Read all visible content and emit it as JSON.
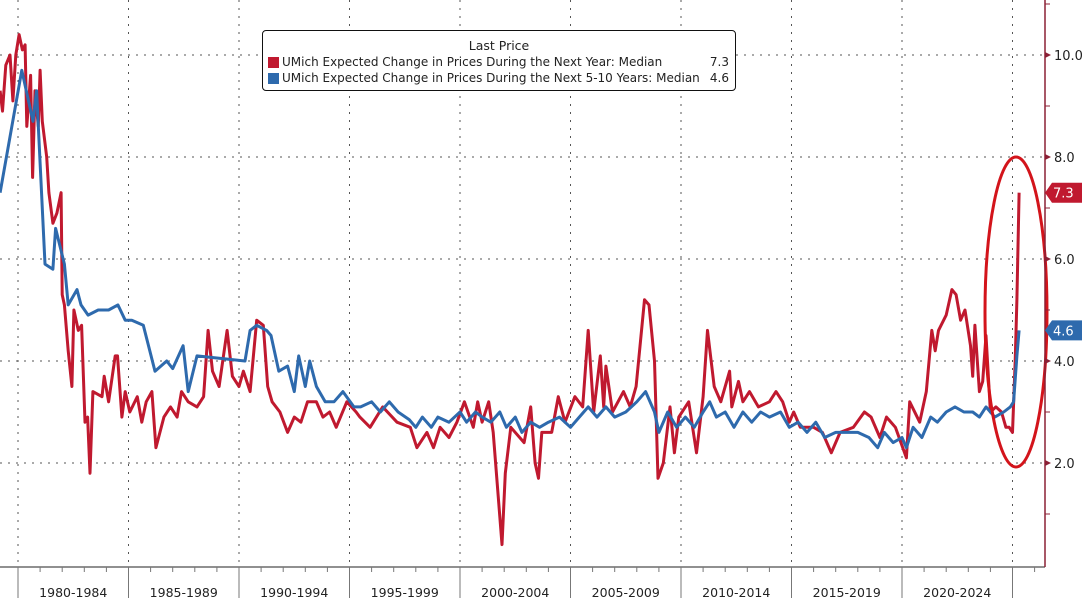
{
  "chart_data": {
    "type": "line",
    "title": "",
    "xlabel": "",
    "ylabel": "",
    "xlim": [
      1979.2,
      2026.6
    ],
    "ylim": [
      0,
      11.08
    ],
    "y_ticks": [
      2.0,
      4.0,
      6.0,
      8.0,
      10.0
    ],
    "y_tick_labels": [
      "2.0",
      "4.0",
      "6.0",
      "8.0",
      "10.0"
    ],
    "x_categories": [
      "1980-1984",
      "1985-1989",
      "1990-1994",
      "1995-1999",
      "2000-2004",
      "2005-2009",
      "2010-2014",
      "2015-2019",
      "2020-2024"
    ],
    "x_category_starts": [
      1980,
      1985,
      1990,
      1995,
      2000,
      2005,
      2010,
      2015,
      2020
    ],
    "grid": true,
    "legend_position": "top-center",
    "legend_header": "Last Price",
    "annotation": "red ellipse around latest 2025 spike",
    "series": [
      {
        "name": "UMich Expected Change in Prices During the Next Year: Median",
        "last": "7.3",
        "color": "#c0192f",
        "points": [
          [
            1979.19,
            9.3
          ],
          [
            1979.3,
            8.9
          ],
          [
            1979.45,
            9.8
          ],
          [
            1979.64,
            10.0
          ],
          [
            1979.77,
            9.1
          ],
          [
            1979.9,
            10.0
          ],
          [
            1980.05,
            10.4
          ],
          [
            1980.2,
            10.1
          ],
          [
            1980.32,
            10.2
          ],
          [
            1980.4,
            8.6
          ],
          [
            1980.57,
            9.6
          ],
          [
            1980.66,
            7.6
          ],
          [
            1980.77,
            9.3
          ],
          [
            1980.92,
            8.6
          ],
          [
            1981.0,
            9.7
          ],
          [
            1981.1,
            8.7
          ],
          [
            1981.3,
            8.0
          ],
          [
            1981.4,
            7.3
          ],
          [
            1981.58,
            6.7
          ],
          [
            1981.76,
            6.9
          ],
          [
            1981.95,
            7.3
          ],
          [
            1982.0,
            5.3
          ],
          [
            1982.1,
            5.1
          ],
          [
            1982.27,
            4.2
          ],
          [
            1982.44,
            3.5
          ],
          [
            1982.53,
            5.0
          ],
          [
            1982.73,
            4.6
          ],
          [
            1982.88,
            4.7
          ],
          [
            1983.03,
            2.8
          ],
          [
            1983.15,
            2.9
          ],
          [
            1983.26,
            1.8
          ],
          [
            1983.39,
            3.4
          ],
          [
            1983.8,
            3.3
          ],
          [
            1983.9,
            3.7
          ],
          [
            1984.1,
            3.2
          ],
          [
            1984.4,
            4.1
          ],
          [
            1984.5,
            4.1
          ],
          [
            1984.7,
            2.9
          ],
          [
            1984.85,
            3.4
          ],
          [
            1985.06,
            3.0
          ],
          [
            1985.4,
            3.3
          ],
          [
            1985.6,
            2.8
          ],
          [
            1985.8,
            3.2
          ],
          [
            1986.06,
            3.4
          ],
          [
            1986.24,
            2.3
          ],
          [
            1986.6,
            2.9
          ],
          [
            1986.9,
            3.1
          ],
          [
            1987.2,
            2.9
          ],
          [
            1987.4,
            3.4
          ],
          [
            1987.7,
            3.2
          ],
          [
            1988.1,
            3.1
          ],
          [
            1988.4,
            3.3
          ],
          [
            1988.6,
            4.6
          ],
          [
            1988.8,
            3.8
          ],
          [
            1989.1,
            3.5
          ],
          [
            1989.46,
            4.6
          ],
          [
            1989.7,
            3.7
          ],
          [
            1990.0,
            3.5
          ],
          [
            1990.2,
            3.8
          ],
          [
            1990.5,
            3.4
          ],
          [
            1990.8,
            4.8
          ],
          [
            1991.1,
            4.7
          ],
          [
            1991.3,
            3.5
          ],
          [
            1991.5,
            3.2
          ],
          [
            1991.85,
            3.0
          ],
          [
            1992.2,
            2.6
          ],
          [
            1992.5,
            2.9
          ],
          [
            1992.8,
            2.8
          ],
          [
            1993.1,
            3.2
          ],
          [
            1993.5,
            3.2
          ],
          [
            1993.8,
            2.9
          ],
          [
            1994.1,
            3.0
          ],
          [
            1994.4,
            2.7
          ],
          [
            1994.88,
            3.2
          ],
          [
            1995.3,
            3.0
          ],
          [
            1995.47,
            2.9
          ],
          [
            1995.93,
            2.7
          ],
          [
            1996.5,
            3.1
          ],
          [
            1997.15,
            2.8
          ],
          [
            1997.75,
            2.7
          ],
          [
            1998.05,
            2.3
          ],
          [
            1998.5,
            2.6
          ],
          [
            1998.8,
            2.3
          ],
          [
            1999.1,
            2.7
          ],
          [
            1999.5,
            2.5
          ],
          [
            1999.86,
            2.8
          ],
          [
            2000.2,
            3.2
          ],
          [
            2000.6,
            2.7
          ],
          [
            2000.8,
            3.2
          ],
          [
            2001.0,
            2.8
          ],
          [
            2001.3,
            3.2
          ],
          [
            2001.5,
            2.6
          ],
          [
            2001.9,
            0.4
          ],
          [
            2002.05,
            1.8
          ],
          [
            2002.3,
            2.7
          ],
          [
            2002.9,
            2.4
          ],
          [
            2003.2,
            3.1
          ],
          [
            2003.4,
            2.0
          ],
          [
            2003.55,
            1.7
          ],
          [
            2003.7,
            2.6
          ],
          [
            2004.15,
            2.6
          ],
          [
            2004.45,
            3.3
          ],
          [
            2004.75,
            2.8
          ],
          [
            2005.2,
            3.3
          ],
          [
            2005.55,
            3.1
          ],
          [
            2005.8,
            4.6
          ],
          [
            2006.05,
            3.0
          ],
          [
            2006.35,
            4.1
          ],
          [
            2006.5,
            3.1
          ],
          [
            2006.6,
            3.9
          ],
          [
            2006.9,
            3.0
          ],
          [
            2007.4,
            3.4
          ],
          [
            2007.7,
            3.1
          ],
          [
            2007.97,
            3.5
          ],
          [
            2008.35,
            5.2
          ],
          [
            2008.55,
            5.1
          ],
          [
            2008.8,
            4.0
          ],
          [
            2008.96,
            1.7
          ],
          [
            2009.2,
            2.0
          ],
          [
            2009.5,
            3.1
          ],
          [
            2009.7,
            2.2
          ],
          [
            2009.9,
            2.9
          ],
          [
            2010.35,
            3.2
          ],
          [
            2010.7,
            2.2
          ],
          [
            2011.0,
            3.3
          ],
          [
            2011.2,
            4.6
          ],
          [
            2011.5,
            3.5
          ],
          [
            2011.8,
            3.2
          ],
          [
            2012.2,
            3.8
          ],
          [
            2012.3,
            3.1
          ],
          [
            2012.6,
            3.6
          ],
          [
            2012.8,
            3.2
          ],
          [
            2013.1,
            3.4
          ],
          [
            2013.5,
            3.1
          ],
          [
            2014.0,
            3.2
          ],
          [
            2014.3,
            3.4
          ],
          [
            2014.6,
            3.2
          ],
          [
            2014.9,
            2.8
          ],
          [
            2015.1,
            3.0
          ],
          [
            2015.4,
            2.7
          ],
          [
            2016.0,
            2.7
          ],
          [
            2016.4,
            2.6
          ],
          [
            2016.8,
            2.2
          ],
          [
            2017.2,
            2.6
          ],
          [
            2017.8,
            2.7
          ],
          [
            2018.3,
            3.0
          ],
          [
            2018.6,
            2.9
          ],
          [
            2019.0,
            2.5
          ],
          [
            2019.3,
            2.9
          ],
          [
            2019.7,
            2.7
          ],
          [
            2020.2,
            2.1
          ],
          [
            2020.35,
            3.2
          ],
          [
            2020.8,
            2.8
          ],
          [
            2021.1,
            3.4
          ],
          [
            2021.35,
            4.6
          ],
          [
            2021.5,
            4.2
          ],
          [
            2021.65,
            4.6
          ],
          [
            2022.0,
            4.9
          ],
          [
            2022.26,
            5.4
          ],
          [
            2022.45,
            5.3
          ],
          [
            2022.65,
            4.8
          ],
          [
            2022.85,
            5.0
          ],
          [
            2023.1,
            4.3
          ],
          [
            2023.2,
            3.7
          ],
          [
            2023.3,
            4.7
          ],
          [
            2023.5,
            3.4
          ],
          [
            2023.65,
            3.6
          ],
          [
            2023.8,
            4.5
          ],
          [
            2024.0,
            3.0
          ],
          [
            2024.25,
            3.1
          ],
          [
            2024.5,
            3.0
          ],
          [
            2024.7,
            2.7
          ],
          [
            2024.85,
            2.7
          ],
          [
            2025.0,
            2.6
          ],
          [
            2025.12,
            4.0
          ],
          [
            2025.2,
            5.2
          ],
          [
            2025.3,
            7.3
          ]
        ]
      },
      {
        "name": "UMich Expected Change in Prices During the Next 5-10 Years: Median",
        "last": "4.6",
        "color": "#2e6aad",
        "points": [
          [
            1979.19,
            7.3
          ],
          [
            1980.17,
            9.7
          ],
          [
            1980.68,
            8.7
          ],
          [
            1980.84,
            9.3
          ],
          [
            1981.22,
            5.9
          ],
          [
            1981.58,
            5.8
          ],
          [
            1981.7,
            6.6
          ],
          [
            1982.1,
            5.9
          ],
          [
            1982.27,
            5.1
          ],
          [
            1982.67,
            5.4
          ],
          [
            1982.85,
            5.1
          ],
          [
            1983.17,
            4.9
          ],
          [
            1983.63,
            5.0
          ],
          [
            1984.1,
            5.0
          ],
          [
            1984.52,
            5.1
          ],
          [
            1984.85,
            4.8
          ],
          [
            1985.15,
            4.8
          ],
          [
            1985.67,
            4.7
          ],
          [
            1986.2,
            3.8
          ],
          [
            1986.73,
            4.0
          ],
          [
            1987.0,
            3.85
          ],
          [
            1987.47,
            4.3
          ],
          [
            1987.7,
            3.4
          ],
          [
            1988.1,
            4.1
          ],
          [
            1990.27,
            4.0
          ],
          [
            1990.5,
            4.6
          ],
          [
            1990.8,
            4.7
          ],
          [
            1991.25,
            4.6
          ],
          [
            1991.45,
            4.5
          ],
          [
            1991.8,
            3.8
          ],
          [
            1992.2,
            3.9
          ],
          [
            1992.5,
            3.4
          ],
          [
            1992.7,
            4.1
          ],
          [
            1993.0,
            3.5
          ],
          [
            1993.2,
            4.0
          ],
          [
            1993.5,
            3.5
          ],
          [
            1993.9,
            3.2
          ],
          [
            1994.3,
            3.2
          ],
          [
            1994.7,
            3.4
          ],
          [
            1995.2,
            3.1
          ],
          [
            1995.5,
            3.1
          ],
          [
            1996.0,
            3.2
          ],
          [
            1996.4,
            3.0
          ],
          [
            1996.8,
            3.2
          ],
          [
            1997.2,
            3.0
          ],
          [
            1997.7,
            2.85
          ],
          [
            1998.0,
            2.7
          ],
          [
            1998.3,
            2.9
          ],
          [
            1998.7,
            2.7
          ],
          [
            1999.0,
            2.9
          ],
          [
            1999.5,
            2.8
          ],
          [
            2000.0,
            3.0
          ],
          [
            2000.3,
            2.8
          ],
          [
            2000.7,
            3.0
          ],
          [
            2001.0,
            2.9
          ],
          [
            2001.4,
            2.8
          ],
          [
            2001.8,
            3.0
          ],
          [
            2002.1,
            2.7
          ],
          [
            2002.5,
            2.9
          ],
          [
            2002.8,
            2.6
          ],
          [
            2003.2,
            2.8
          ],
          [
            2003.6,
            2.7
          ],
          [
            2004.0,
            2.8
          ],
          [
            2004.5,
            2.9
          ],
          [
            2005.0,
            2.7
          ],
          [
            2005.4,
            2.9
          ],
          [
            2005.8,
            3.1
          ],
          [
            2006.2,
            2.9
          ],
          [
            2006.6,
            3.1
          ],
          [
            2007.0,
            2.9
          ],
          [
            2007.5,
            3.0
          ],
          [
            2008.0,
            3.2
          ],
          [
            2008.4,
            3.4
          ],
          [
            2008.8,
            3.0
          ],
          [
            2009.0,
            2.6
          ],
          [
            2009.4,
            3.0
          ],
          [
            2009.8,
            2.7
          ],
          [
            2010.2,
            2.9
          ],
          [
            2010.6,
            2.7
          ],
          [
            2011.0,
            3.0
          ],
          [
            2011.3,
            3.2
          ],
          [
            2011.6,
            2.9
          ],
          [
            2012.0,
            3.0
          ],
          [
            2012.4,
            2.7
          ],
          [
            2012.8,
            3.0
          ],
          [
            2013.2,
            2.8
          ],
          [
            2013.6,
            3.0
          ],
          [
            2014.0,
            2.9
          ],
          [
            2014.5,
            3.0
          ],
          [
            2014.9,
            2.7
          ],
          [
            2015.3,
            2.8
          ],
          [
            2015.7,
            2.6
          ],
          [
            2016.1,
            2.8
          ],
          [
            2016.5,
            2.5
          ],
          [
            2017.0,
            2.6
          ],
          [
            2017.5,
            2.6
          ],
          [
            2018.0,
            2.6
          ],
          [
            2018.5,
            2.5
          ],
          [
            2018.9,
            2.3
          ],
          [
            2019.2,
            2.6
          ],
          [
            2019.6,
            2.4
          ],
          [
            2020.0,
            2.5
          ],
          [
            2020.2,
            2.3
          ],
          [
            2020.5,
            2.7
          ],
          [
            2020.9,
            2.5
          ],
          [
            2021.3,
            2.9
          ],
          [
            2021.6,
            2.8
          ],
          [
            2022.0,
            3.0
          ],
          [
            2022.4,
            3.1
          ],
          [
            2022.8,
            3.0
          ],
          [
            2023.2,
            3.0
          ],
          [
            2023.5,
            2.9
          ],
          [
            2023.8,
            3.1
          ],
          [
            2024.2,
            2.9
          ],
          [
            2024.6,
            3.0
          ],
          [
            2024.9,
            3.1
          ],
          [
            2025.05,
            3.2
          ],
          [
            2025.2,
            4.1
          ],
          [
            2025.3,
            4.6
          ]
        ]
      }
    ]
  }
}
